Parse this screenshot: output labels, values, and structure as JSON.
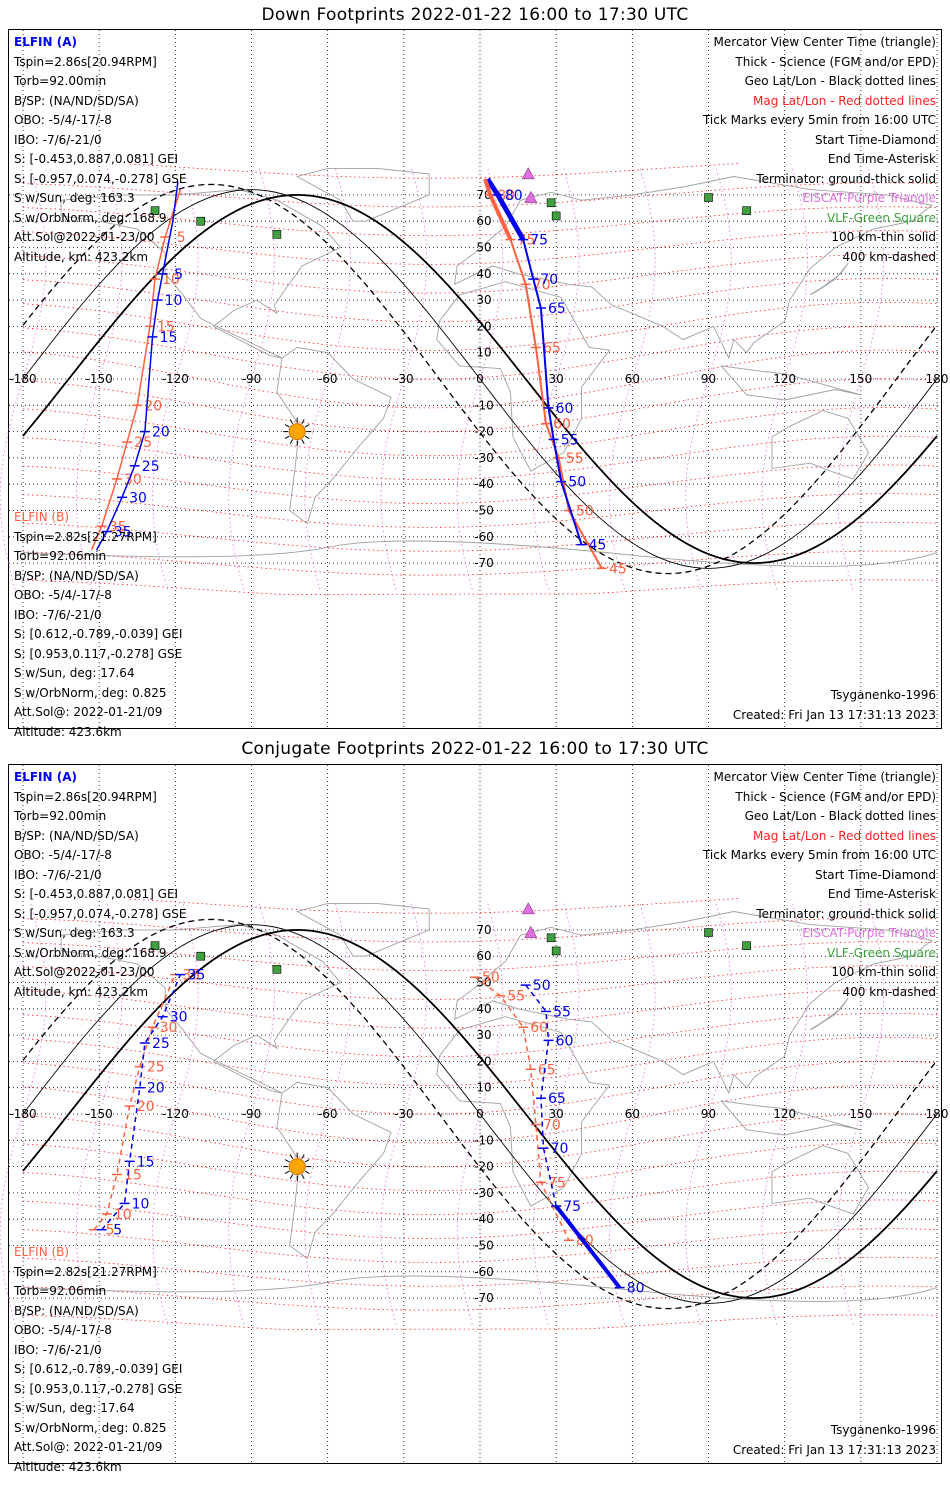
{
  "panels": [
    {
      "id": "down",
      "title": "Down Footprints 2022-01-22 16:00 to 17:30 UTC",
      "sat_a": {
        "name": "ELFIN (A)",
        "lines": [
          "Tspin=2.86s[20.94RPM]",
          "Torb=92.00min",
          "B/SP: (NA/ND/SD/SA)",
          "OBO: -5/4/-17/-8",
          "IBO: -7/6/-21/0",
          "S: [-0.453,0.887,0.081] GEI",
          "S: [-0.957,0.074,-0.278] GSE",
          "S w/Sun, deg: 163.3",
          "S w/OrbNorm, deg: 168.9",
          "Att.Sol@2022-01-23/00",
          "Altitude, km: 423.2km"
        ]
      },
      "sat_b": {
        "name": "ELFIN (B)",
        "lines": [
          "Tspin=2.82s[21.27RPM]",
          "Torb=92.06min",
          "B/SP: (NA/ND/SD/SA)",
          "OBO: -5/4/-17/-8",
          "IBO: -7/6/-21/0",
          "S: [0.612,-0.789,-0.039] GEI",
          "S: [0.953,0.117,-0.278] GSE",
          "S w/Sun, deg: 17.64",
          "S w/OrbNorm, deg: 0.825",
          "Att.Sol@: 2022-01-21/09",
          "Altitude: 423.6km"
        ]
      },
      "model": "Tsyganenko-1996",
      "created": "Created: Fri Jan 13 17:31:13 2023"
    },
    {
      "id": "conj",
      "title": "Conjugate Footprints 2022-01-22 16:00 to 17:30 UTC",
      "sat_a": {
        "name": "ELFIN (A)",
        "lines": [
          "Tspin=2.86s[20.94RPM]",
          "Torb=92.00min",
          "B/SP: (NA/ND/SD/SA)",
          "OBO: -5/4/-17/-8",
          "IBO: -7/6/-21/0",
          "S: [-0.453,0.887,0.081] GEI",
          "S: [-0.957,0.074,-0.278] GSE",
          "S w/Sun, deg: 163.3",
          "S w/OrbNorm, deg: 168.9",
          "Att.Sol@2022-01-23/00",
          "Altitude, km: 423.2km"
        ]
      },
      "sat_b": {
        "name": "ELFIN (B)",
        "lines": [
          "Tspin=2.82s[21.27RPM]",
          "Torb=92.06min",
          "B/SP: (NA/ND/SD/SA)",
          "OBO: -5/4/-17/-8",
          "IBO: -7/6/-21/0",
          "S: [0.612,-0.789,-0.039] GEI",
          "S: [0.953,0.117,-0.278] GSE",
          "S w/Sun, deg: 17.64",
          "S w/OrbNorm, deg: 0.825",
          "Att.Sol@: 2022-01-21/09",
          "Altitude: 423.6km"
        ]
      },
      "model": "Tsyganenko-1996",
      "created": "Created: Fri Jan 13 17:31:13 2023"
    }
  ],
  "legend": [
    {
      "text": "Mercator View Center Time (triangle)",
      "color": "#000000"
    },
    {
      "text": "Thick - Science (FGM and/or EPD)",
      "color": "#000000"
    },
    {
      "text": "Geo Lat/Lon - Black dotted lines",
      "color": "#000000"
    },
    {
      "text": "Mag Lat/Lon - Red dotted lines",
      "color": "#ff2020"
    },
    {
      "text": "Tick Marks every 5min from 16:00 UTC",
      "color": "#000000"
    },
    {
      "text": "Start Time-Diamond",
      "color": "#000000"
    },
    {
      "text": "End Time-Asterisk",
      "color": "#000000"
    },
    {
      "text": "Terminator: ground-thick solid",
      "color": "#000000"
    },
    {
      "text": "EISCAT-Purple Triangle",
      "color": "#e070e0"
    },
    {
      "text": "VLF-Green Square",
      "color": "#40a040"
    },
    {
      "text": "100 km-thin solid",
      "color": "#000000"
    },
    {
      "text": "400 km-dashed",
      "color": "#000000"
    }
  ],
  "axes": {
    "lon_ticks": [
      "-180",
      "-150",
      "-120",
      "-90",
      "-60",
      "-30",
      "0",
      "30",
      "60",
      "90",
      "120",
      "150",
      "180"
    ],
    "lat_ticks": [
      "70",
      "60",
      "50",
      "40",
      "30",
      "20",
      "10",
      "-10",
      "-20",
      "-30",
      "-40",
      "-50",
      "-60",
      "-70"
    ]
  },
  "colors": {
    "sat_a": "#0000ee",
    "sat_b": "#ff6040",
    "vlf": "#40a040",
    "eiscat": "#e070e0",
    "mag_grid": "#ff2020",
    "sun": "#ffa500"
  },
  "markers": {
    "vlf": [
      [
        -128,
        64
      ],
      [
        -110,
        60
      ],
      [
        -80,
        55
      ],
      [
        28,
        67
      ],
      [
        30,
        62
      ],
      [
        90,
        69
      ],
      [
        105,
        64
      ]
    ],
    "eiscat": [
      [
        19,
        78
      ],
      [
        20,
        69
      ]
    ],
    "sun": [
      -72,
      -20
    ]
  },
  "tracks": {
    "down_a": [
      [
        -119,
        75,
        ""
      ],
      [
        -121,
        60,
        ""
      ],
      [
        -125,
        40,
        "5"
      ],
      [
        -127,
        30,
        "10"
      ],
      [
        -129,
        16,
        "15"
      ],
      [
        -132,
        -20,
        "20"
      ],
      [
        -136,
        -33,
        "25"
      ],
      [
        -141,
        -45,
        "30"
      ],
      [
        -147,
        -58,
        "35"
      ],
      [
        -151,
        -65,
        ""
      ]
    ],
    "down_b": [
      [
        -118,
        72,
        ""
      ],
      [
        -124,
        54,
        "5"
      ],
      [
        -128,
        38,
        "10"
      ],
      [
        -130,
        20,
        "15"
      ],
      [
        -135,
        -10,
        "20"
      ],
      [
        -139,
        -24,
        "25"
      ],
      [
        -143,
        -38,
        "30"
      ],
      [
        -149,
        -56,
        "35"
      ],
      [
        -153,
        -65,
        ""
      ]
    ],
    "down_a2": [
      [
        3,
        76,
        ""
      ],
      [
        7,
        70,
        "80"
      ],
      [
        17,
        53,
        "75"
      ],
      [
        21,
        38,
        "70"
      ],
      [
        24,
        27,
        "65"
      ],
      [
        27,
        -11,
        "60"
      ],
      [
        29,
        -23,
        "55"
      ],
      [
        32,
        -39,
        "50"
      ],
      [
        40,
        -63,
        "45"
      ]
    ],
    "down_b2": [
      [
        2,
        76,
        ""
      ],
      [
        4,
        70,
        "80"
      ],
      [
        12,
        53,
        "75"
      ],
      [
        18,
        36,
        "70"
      ],
      [
        22,
        12,
        "65"
      ],
      [
        26,
        -17,
        "60"
      ],
      [
        31,
        -30,
        "55"
      ],
      [
        35,
        -50,
        "50"
      ],
      [
        48,
        -72,
        "45"
      ]
    ],
    "conj_a": [
      [
        -149,
        -44,
        "5"
      ],
      [
        -140,
        -34,
        "10"
      ],
      [
        -138,
        -18,
        "15"
      ],
      [
        -134,
        10,
        "20"
      ],
      [
        -132,
        27,
        "25"
      ],
      [
        -125,
        37,
        "30"
      ],
      [
        -118,
        53,
        "35"
      ]
    ],
    "conj_b": [
      [
        -152,
        -44,
        "5"
      ],
      [
        -147,
        -38,
        "10"
      ],
      [
        -143,
        -23,
        "15"
      ],
      [
        -138,
        3,
        "20"
      ],
      [
        -134,
        18,
        "25"
      ],
      [
        -129,
        33,
        "30"
      ],
      [
        -120,
        53,
        "35"
      ]
    ],
    "conj_a2": [
      [
        18,
        49,
        "50"
      ],
      [
        26,
        39,
        "55"
      ],
      [
        27,
        28,
        "60"
      ],
      [
        24,
        6,
        "65"
      ],
      [
        25,
        -13,
        "70"
      ],
      [
        30,
        -35,
        "75"
      ],
      [
        55,
        -66,
        "80"
      ]
    ],
    "conj_b2": [
      [
        -2,
        52,
        "50"
      ],
      [
        8,
        45,
        "55"
      ],
      [
        17,
        33,
        "60"
      ],
      [
        20,
        17,
        "65"
      ],
      [
        22,
        -4,
        "70"
      ],
      [
        24,
        -26,
        "75"
      ],
      [
        35,
        -48,
        "80"
      ]
    ]
  }
}
